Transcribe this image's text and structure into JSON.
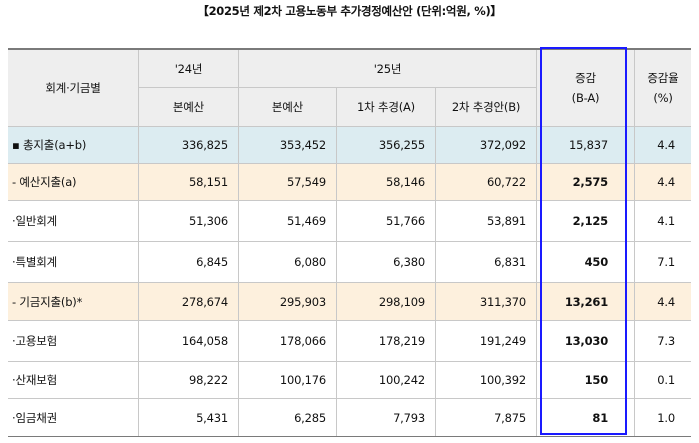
{
  "title": "【2025년 제2차 고용노동부 추가경정예산안 (단위:억원, %)】",
  "header": {
    "category": "회계·기금별",
    "y24": "'24년",
    "y25": "'25년",
    "y24_main": "본예산",
    "y25_main": "본예산",
    "supp1": "1차 추경(A)",
    "supp2": "2차 추경안(B)",
    "diff_line1": "증감",
    "diff_line2": "(B-A)",
    "rate_line1": "증감율",
    "rate_line2": "(%)"
  },
  "rows": [
    {
      "label": "▪ 총지출(a+b)",
      "y24": "336,825",
      "y25": "353,452",
      "supp1": "356,255",
      "supp2": "372,092",
      "diff": "15,837",
      "rate": "4.4"
    },
    {
      "label": "- 예산지출(a)",
      "y24": "58,151",
      "y25": "57,549",
      "supp1": "58,146",
      "supp2": "60,722",
      "diff": "2,575",
      "rate": "4.4"
    },
    {
      "label": "·일반회계",
      "y24": "51,306",
      "y25": "51,469",
      "supp1": "51,766",
      "supp2": "53,891",
      "diff": "2,125",
      "rate": "4.1"
    },
    {
      "label": "·특별회계",
      "y24": "6,845",
      "y25": "6,080",
      "supp1": "6,380",
      "supp2": "6,831",
      "diff": "450",
      "rate": "7.1"
    },
    {
      "label": "- 기금지출(b)*",
      "y24": "278,674",
      "y25": "295,903",
      "supp1": "298,109",
      "supp2": "311,370",
      "diff": "13,261",
      "rate": "4.4"
    },
    {
      "label": "·고용보험",
      "y24": "164,058",
      "y25": "178,066",
      "supp1": "178,219",
      "supp2": "191,249",
      "diff": "13,030",
      "rate": "7.3"
    },
    {
      "label": "·산재보험",
      "y24": "98,222",
      "y25": "100,176",
      "supp1": "100,242",
      "supp2": "100,392",
      "diff": "150",
      "rate": "0.1"
    },
    {
      "label": "·임금채권",
      "y24": "5,431",
      "y25": "6,285",
      "supp1": "7,793",
      "supp2": "7,875",
      "diff": "81",
      "rate": "1.0"
    }
  ],
  "colors": {
    "total_row": "#dcecf1",
    "sub_row": "#fdf0dd",
    "header": "#eeeeee",
    "highlight_box": "#1a1aff"
  }
}
